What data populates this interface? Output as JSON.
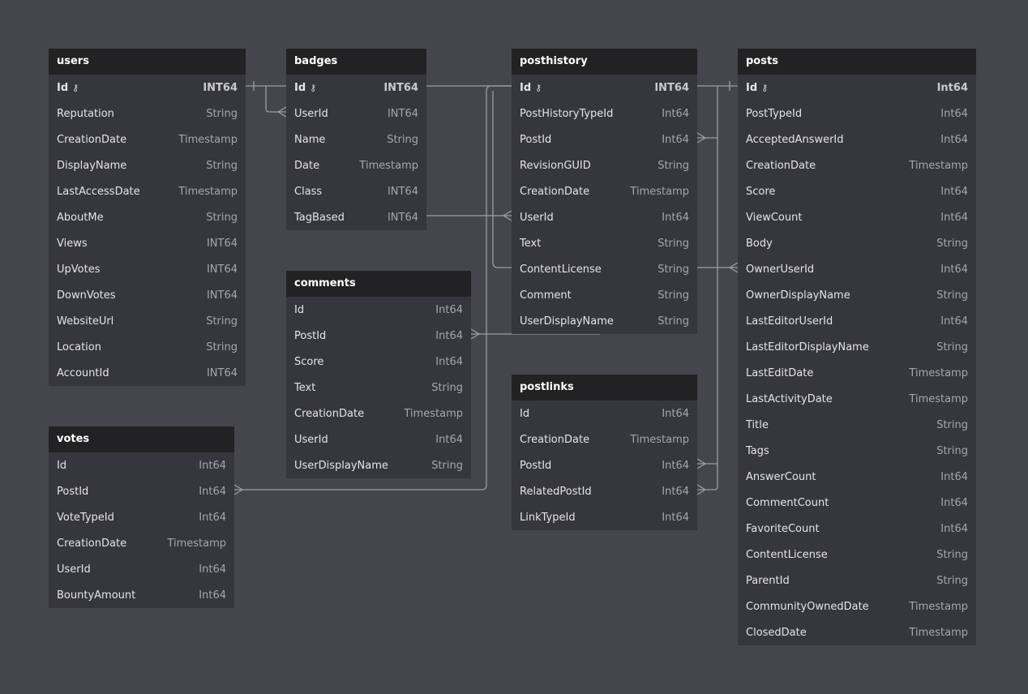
{
  "colors": {
    "background": "#45454d",
    "table_body": "#36363e",
    "table_header": "#222224",
    "connector": "#9d9da4"
  },
  "tables": [
    {
      "name": "users",
      "columns": [
        [
          "Id",
          "INT64",
          true
        ],
        [
          "Reputation",
          "String"
        ],
        [
          "CreationDate",
          "Timestamp"
        ],
        [
          "DisplayName",
          "String"
        ],
        [
          "LastAccessDate",
          "Timestamp"
        ],
        [
          "AboutMe",
          "String"
        ],
        [
          "Views",
          "INT64"
        ],
        [
          "UpVotes",
          "INT64"
        ],
        [
          "DownVotes",
          "INT64"
        ],
        [
          "WebsiteUrl",
          "String"
        ],
        [
          "Location",
          "String"
        ],
        [
          "AccountId",
          "INT64"
        ]
      ]
    },
    {
      "name": "badges",
      "columns": [
        [
          "Id",
          "INT64",
          true
        ],
        [
          "UserId",
          "INT64"
        ],
        [
          "Name",
          "String"
        ],
        [
          "Date",
          "Timestamp"
        ],
        [
          "Class",
          "INT64"
        ],
        [
          "TagBased",
          "INT64"
        ]
      ]
    },
    {
      "name": "comments",
      "columns": [
        [
          "Id",
          "Int64"
        ],
        [
          "PostId",
          "Int64"
        ],
        [
          "Score",
          "Int64"
        ],
        [
          "Text",
          "String"
        ],
        [
          "CreationDate",
          "Timestamp"
        ],
        [
          "UserId",
          "Int64"
        ],
        [
          "UserDisplayName",
          "String"
        ]
      ]
    },
    {
      "name": "votes",
      "columns": [
        [
          "Id",
          "Int64"
        ],
        [
          "PostId",
          "Int64"
        ],
        [
          "VoteTypeId",
          "Int64"
        ],
        [
          "CreationDate",
          "Timestamp"
        ],
        [
          "UserId",
          "Int64"
        ],
        [
          "BountyAmount",
          "Int64"
        ]
      ]
    },
    {
      "name": "posthistory",
      "columns": [
        [
          "Id",
          "INT64",
          true
        ],
        [
          "PostHistoryTypeId",
          "Int64"
        ],
        [
          "PostId",
          "Int64"
        ],
        [
          "RevisionGUID",
          "String"
        ],
        [
          "CreationDate",
          "Timestamp"
        ],
        [
          "UserId",
          "Int64"
        ],
        [
          "Text",
          "String"
        ],
        [
          "ContentLicense",
          "String"
        ],
        [
          "Comment",
          "String"
        ],
        [
          "UserDisplayName",
          "String"
        ]
      ]
    },
    {
      "name": "postlinks",
      "columns": [
        [
          "Id",
          "Int64"
        ],
        [
          "CreationDate",
          "Timestamp"
        ],
        [
          "PostId",
          "Int64"
        ],
        [
          "RelatedPostId",
          "Int64"
        ],
        [
          "LinkTypeId",
          "Int64"
        ]
      ]
    },
    {
      "name": "posts",
      "columns": [
        [
          "Id",
          "Int64",
          true
        ],
        [
          "PostTypeId",
          "Int64"
        ],
        [
          "AcceptedAnswerId",
          "Int64"
        ],
        [
          "CreationDate",
          "Timestamp"
        ],
        [
          "Score",
          "Int64"
        ],
        [
          "ViewCount",
          "Int64"
        ],
        [
          "Body",
          "String"
        ],
        [
          "OwnerUserId",
          "Int64"
        ],
        [
          "OwnerDisplayName",
          "String"
        ],
        [
          "LastEditorUserId",
          "Int64"
        ],
        [
          "LastEditorDisplayName",
          "String"
        ],
        [
          "LastEditDate",
          "Timestamp"
        ],
        [
          "LastActivityDate",
          "Timestamp"
        ],
        [
          "Title",
          "String"
        ],
        [
          "Tags",
          "String"
        ],
        [
          "AnswerCount",
          "Int64"
        ],
        [
          "CommentCount",
          "Int64"
        ],
        [
          "FavoriteCount",
          "Int64"
        ],
        [
          "ContentLicense",
          "String"
        ],
        [
          "ParentId",
          "String"
        ],
        [
          "CommunityOwnedDate",
          "Timestamp"
        ],
        [
          "ClosedDate",
          "Timestamp"
        ]
      ]
    }
  ],
  "key_icon": "key-icon"
}
